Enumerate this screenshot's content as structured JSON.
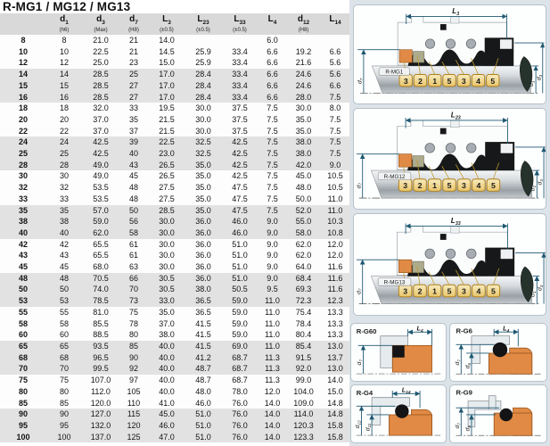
{
  "title": "R-MG1 / MG12 / MG13",
  "table": {
    "headers": [
      {
        "base": "",
        "sub": "",
        "tol": ""
      },
      {
        "base": "d",
        "sub": "1",
        "tol": "(h6)"
      },
      {
        "base": "d",
        "sub": "3",
        "tol": "(Max)"
      },
      {
        "base": "d",
        "sub": "7",
        "tol": "(H8)"
      },
      {
        "base": "L",
        "sub": "3",
        "tol": "(±0.5)"
      },
      {
        "base": "L",
        "sub": "23",
        "tol": "(±0.5)"
      },
      {
        "base": "L",
        "sub": "33",
        "tol": "(±0.5)"
      },
      {
        "base": "L",
        "sub": "4",
        "tol": ""
      },
      {
        "base": "d",
        "sub": "12",
        "tol": "(H8)"
      },
      {
        "base": "L",
        "sub": "14",
        "tol": ""
      }
    ],
    "rows": [
      [
        "8",
        "8",
        "21.0",
        "21",
        "14.0",
        "",
        "",
        "6.0",
        "",
        ""
      ],
      [
        "10",
        "10",
        "22.5",
        "21",
        "14.5",
        "25.9",
        "33.4",
        "6.6",
        "19.2",
        "6.6"
      ],
      [
        "12",
        "12",
        "25.0",
        "23",
        "15.0",
        "25.9",
        "33.4",
        "6.6",
        "21.6",
        "5.6"
      ],
      [
        "14",
        "14",
        "28.5",
        "25",
        "17.0",
        "28.4",
        "33.4",
        "6.6",
        "24.6",
        "5.6"
      ],
      [
        "15",
        "15",
        "28.5",
        "27",
        "17.0",
        "28.4",
        "33.4",
        "6.6",
        "24.6",
        "6.6"
      ],
      [
        "16",
        "16",
        "28.5",
        "27",
        "17.0",
        "28.4",
        "33.4",
        "6.6",
        "28.0",
        "7.5"
      ],
      [
        "18",
        "18",
        "32.0",
        "33",
        "19.5",
        "30.0",
        "37.5",
        "7.5",
        "30.0",
        "8.0"
      ],
      [
        "20",
        "20",
        "37.0",
        "35",
        "21.5",
        "30.0",
        "37.5",
        "7.5",
        "35.0",
        "7.5"
      ],
      [
        "22",
        "22",
        "37.0",
        "37",
        "21.5",
        "30.0",
        "37.5",
        "7.5",
        "35.0",
        "7.5"
      ],
      [
        "24",
        "24",
        "42.5",
        "39",
        "22.5",
        "32.5",
        "42.5",
        "7.5",
        "38.0",
        "7.5"
      ],
      [
        "25",
        "25",
        "42.5",
        "40",
        "23.0",
        "32.5",
        "42.5",
        "7.5",
        "38.0",
        "7.5"
      ],
      [
        "28",
        "28",
        "49.0",
        "43",
        "26.5",
        "35.0",
        "42.5",
        "7.5",
        "42.0",
        "9.0"
      ],
      [
        "30",
        "30",
        "49.0",
        "45",
        "26.5",
        "35.0",
        "42.5",
        "7.5",
        "45.0",
        "10.5"
      ],
      [
        "32",
        "32",
        "53.5",
        "48",
        "27.5",
        "35.0",
        "47.5",
        "7.5",
        "48.0",
        "10.5"
      ],
      [
        "33",
        "33",
        "53.5",
        "48",
        "27.5",
        "35.0",
        "47.5",
        "7.5",
        "50.0",
        "11.0"
      ],
      [
        "35",
        "35",
        "57.0",
        "50",
        "28.5",
        "35.0",
        "47.5",
        "7.5",
        "52.0",
        "11.0"
      ],
      [
        "38",
        "38",
        "59.0",
        "56",
        "30.0",
        "36.0",
        "46.0",
        "9.0",
        "55.0",
        "10.3"
      ],
      [
        "40",
        "40",
        "62.0",
        "58",
        "30.0",
        "36.0",
        "46.0",
        "9.0",
        "58.0",
        "10.8"
      ],
      [
        "42",
        "42",
        "65.5",
        "61",
        "30.0",
        "36.0",
        "51.0",
        "9.0",
        "62.0",
        "12.0"
      ],
      [
        "43",
        "43",
        "65.5",
        "61",
        "30.0",
        "36.0",
        "51.0",
        "9.0",
        "62.0",
        "12.0"
      ],
      [
        "45",
        "45",
        "68.0",
        "63",
        "30.0",
        "36.0",
        "51.0",
        "9.0",
        "64.0",
        "11.6"
      ],
      [
        "48",
        "48",
        "70.5",
        "66",
        "30.5",
        "36.0",
        "51.0",
        "9.0",
        "68.4",
        "11.6"
      ],
      [
        "50",
        "50",
        "74.0",
        "70",
        "30.5",
        "38.0",
        "50.5",
        "9.5",
        "69.3",
        "11.6"
      ],
      [
        "53",
        "53",
        "78.5",
        "73",
        "33.0",
        "36.5",
        "59.0",
        "11.0",
        "72.3",
        "12.3"
      ],
      [
        "55",
        "55",
        "81.0",
        "75",
        "35.0",
        "36.5",
        "59.0",
        "11.0",
        "75.4",
        "13.3"
      ],
      [
        "58",
        "58",
        "85.5",
        "78",
        "37.0",
        "41.5",
        "59.0",
        "11.0",
        "78.4",
        "13.3"
      ],
      [
        "60",
        "60",
        "88.5",
        "80",
        "38.0",
        "41.5",
        "59.0",
        "11.0",
        "80.4",
        "13.3"
      ],
      [
        "65",
        "65",
        "93.5",
        "85",
        "40.0",
        "41.5",
        "69.0",
        "11.0",
        "85.4",
        "13.0"
      ],
      [
        "68",
        "68",
        "96.5",
        "90",
        "40.0",
        "41.2",
        "68.7",
        "11.3",
        "91.5",
        "13.7"
      ],
      [
        "70",
        "70",
        "99.5",
        "92",
        "40.0",
        "48.7",
        "68.7",
        "11.3",
        "92.0",
        "13.0"
      ],
      [
        "75",
        "75",
        "107.0",
        "97",
        "40.0",
        "48.7",
        "68.7",
        "11.3",
        "99.0",
        "14.0"
      ],
      [
        "80",
        "80",
        "112.0",
        "105",
        "40.0",
        "48.0",
        "78.0",
        "12.0",
        "104.0",
        "15.0"
      ],
      [
        "85",
        "85",
        "120.0",
        "110",
        "41.0",
        "46.0",
        "76.0",
        "14.0",
        "109.0",
        "14.8"
      ],
      [
        "90",
        "90",
        "127.0",
        "115",
        "45.0",
        "51.0",
        "76.0",
        "14.0",
        "114.0",
        "14.8"
      ],
      [
        "95",
        "95",
        "132.0",
        "120",
        "46.0",
        "51.0",
        "76.0",
        "14.0",
        "120.3",
        "15.8"
      ],
      [
        "100",
        "100",
        "137.0",
        "125",
        "47.0",
        "51.0",
        "76.0",
        "14.0",
        "123.3",
        "15.8"
      ]
    ]
  },
  "callouts": [
    "3",
    "2",
    "1",
    "5",
    "3",
    "4",
    "5"
  ],
  "dim_labels": {
    "d1": {
      "base": "d",
      "sub": "1"
    },
    "d3": {
      "base": "d",
      "sub": "3"
    },
    "d7": {
      "base": "d",
      "sub": "7"
    }
  },
  "main_diagrams": [
    {
      "name": "R-MG1",
      "dim_base": "L",
      "dim_sub": "3"
    },
    {
      "name": "R-MG12",
      "dim_base": "L",
      "dim_sub": "23"
    },
    {
      "name": "R-MG13",
      "dim_base": "L",
      "dim_sub": "33"
    }
  ],
  "seat_diagrams": [
    {
      "name": "R-G60",
      "top_base": "L",
      "top_sub": "4",
      "dims": [
        {
          "base": "d",
          "sub": "7"
        }
      ]
    },
    {
      "name": "R-G6",
      "top_base": "L",
      "top_sub": "4",
      "dims": [
        {
          "base": "d",
          "sub": "7"
        },
        {
          "base": "d",
          "sub": "6"
        }
      ]
    },
    {
      "name": "R-G4",
      "top_base": "L",
      "top_sub": "14",
      "dims": [
        {
          "base": "d",
          "sub": "12"
        },
        {
          "base": "d",
          "sub": "11"
        }
      ]
    },
    {
      "name": "R-G9",
      "top_base": "",
      "top_sub": "",
      "dims": [
        {
          "base": "d",
          "sub": "7"
        },
        {
          "base": "d",
          "sub": "8"
        }
      ]
    }
  ],
  "colors": {
    "header_bg": "#d9d9d9",
    "stripe": "#e2e2e2",
    "panel_bg": "#dce3e9",
    "card_border": "#b6c2ca",
    "dim_line": "#1e5872",
    "callout_fill": "#f3dd96",
    "callout_border": "#b08018",
    "part_orange": "#e08a45",
    "part_olive": "#adab8d",
    "rubber_black": "#17181a",
    "seat_dark": "#25332c",
    "shaft_gray": "#c6cbcf"
  }
}
